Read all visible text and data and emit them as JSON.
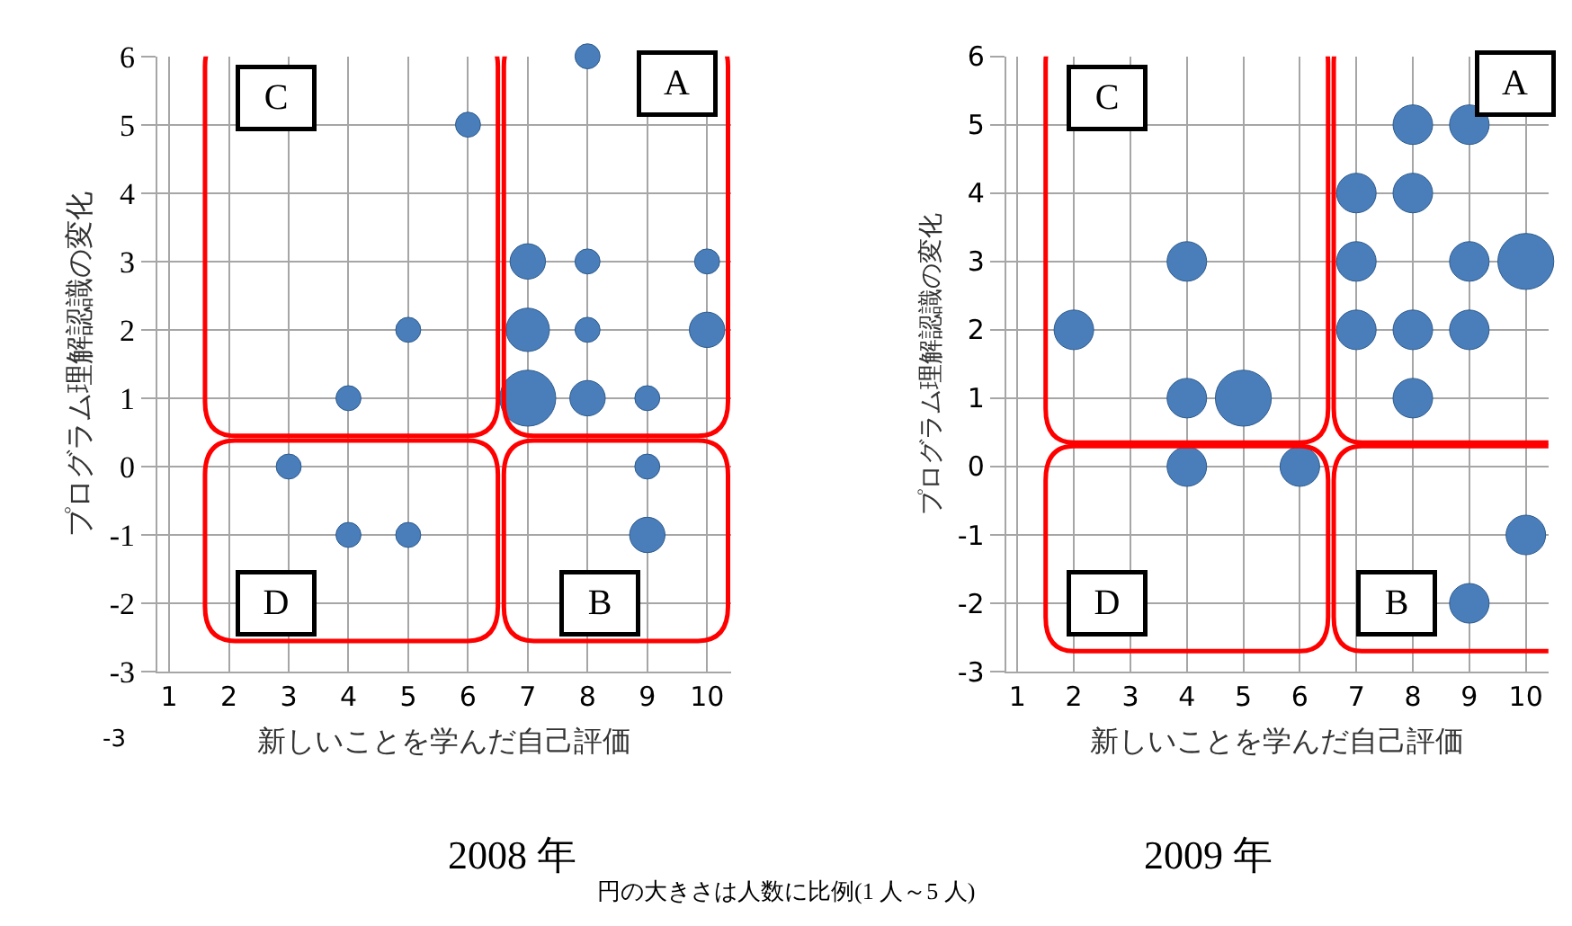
{
  "chart_data": [
    {
      "type": "bubble",
      "title": "2008 年",
      "xlabel": "新しいことを学んだ自己評価",
      "ylabel": "プログラム理解認識の変化",
      "x": [
        8,
        6,
        7,
        8,
        10,
        7,
        8,
        10,
        7,
        8,
        9,
        5,
        4,
        3,
        9,
        4,
        5,
        9
      ],
      "values": [
        6,
        5,
        3,
        3,
        3,
        2,
        2,
        2,
        1,
        1,
        1,
        2,
        1,
        0,
        0,
        -1,
        -1,
        -1
      ],
      "sizes": [
        0.2,
        0.2,
        0.4,
        0.2,
        0.2,
        0.6,
        0.2,
        0.4,
        1,
        0.4,
        0.2,
        0.2,
        0.2,
        0.2,
        0.2,
        0.2,
        0.2,
        0.4
      ],
      "color": "#4a7ebb",
      "marker": "circle",
      "grid": true,
      "xlim": [
        0.8,
        10.4
      ],
      "ylim": [
        -3,
        6
      ],
      "xticks": [
        1,
        2,
        3,
        4,
        5,
        6,
        7,
        8,
        9,
        10
      ],
      "yticks": [
        -3,
        -2,
        -1,
        0,
        1,
        2,
        3,
        4,
        5,
        6
      ],
      "annotations": [
        {
          "text": "C",
          "x": 2.8,
          "y": 5.4
        },
        {
          "text": "A",
          "x": 9.5,
          "y": 5.6
        },
        {
          "text": "D",
          "x": 2.8,
          "y": -2.0
        },
        {
          "text": "B",
          "x": 8.2,
          "y": -2.0
        },
        "-3"
      ]
    },
    {
      "type": "bubble",
      "title": "2009 年",
      "xlabel": "新しいことを学んだ自己評価",
      "ylabel": "プログラム理解認識の変化",
      "x": [
        8,
        9,
        7,
        8,
        4,
        7,
        9,
        10,
        2,
        7,
        8,
        9,
        4,
        5,
        8,
        4,
        6,
        10,
        9
      ],
      "values": [
        5,
        5,
        4,
        4,
        3,
        3,
        3,
        3,
        2,
        2,
        2,
        2,
        1,
        1,
        1,
        0,
        0,
        -1,
        -2
      ],
      "sizes": [
        0.5,
        0.5,
        0.5,
        0.5,
        0.5,
        0.5,
        0.5,
        1,
        0.5,
        0.5,
        0.5,
        0.5,
        0.5,
        1,
        0.5,
        0.5,
        0.5,
        0.5,
        0.5
      ],
      "color": "#4a7ebb",
      "marker": "circle",
      "grid": true,
      "xlim": [
        0.8,
        10.4
      ],
      "ylim": [
        -3,
        6
      ],
      "xticks": [
        1,
        2,
        3,
        4,
        5,
        6,
        7,
        8,
        9,
        10
      ],
      "yticks": [
        -3,
        -2,
        -1,
        0,
        1,
        2,
        3,
        4,
        5,
        6
      ],
      "annotations": [
        {
          "text": "C",
          "x": 2.6,
          "y": 5.4
        },
        {
          "text": "A",
          "x": 9.8,
          "y": 5.6
        },
        {
          "text": "D",
          "x": 2.6,
          "y": -2.0
        },
        {
          "text": "B",
          "x": 7.7,
          "y": -2.0
        },
        "円の大きさは人数に比例(1 人～5 人)"
      ]
    }
  ]
}
